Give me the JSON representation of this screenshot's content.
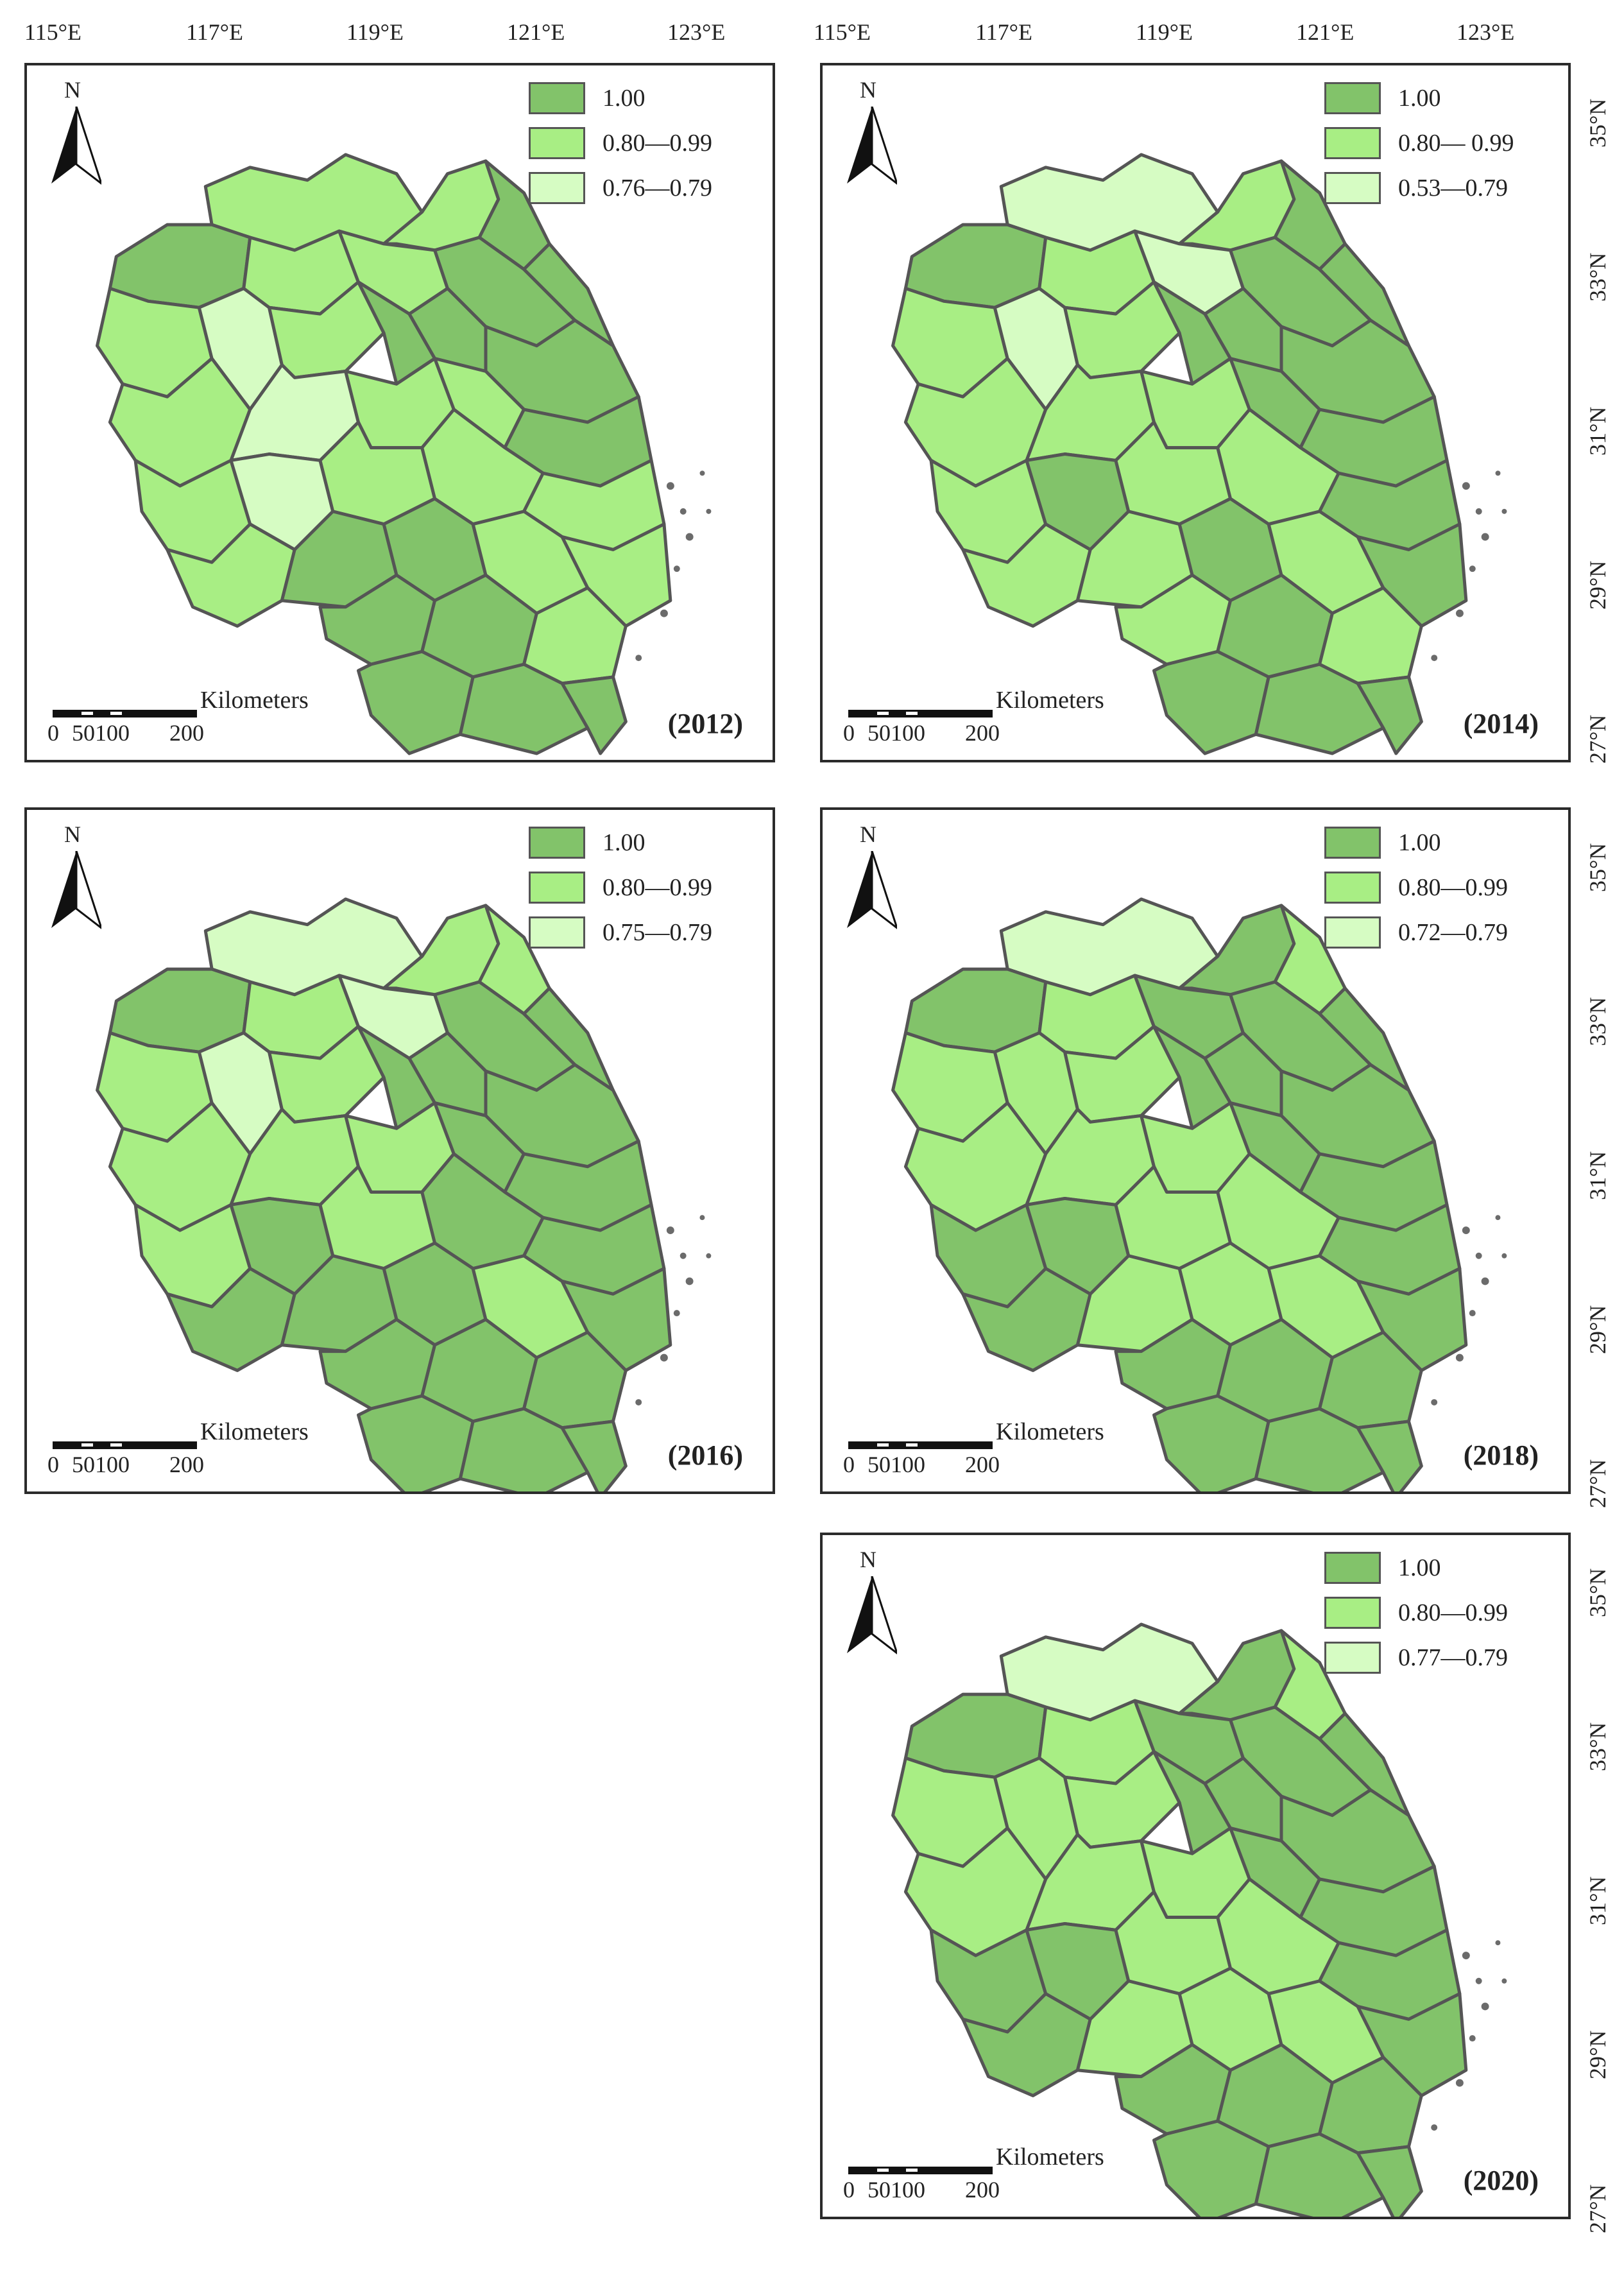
{
  "longitude_labels": [
    "115°E",
    "117°E",
    "119°E",
    "121°E",
    "123°E"
  ],
  "latitude_labels": [
    "35°N",
    "33°N",
    "31°N",
    "29°N",
    "27°N"
  ],
  "north_label": "N",
  "scale": {
    "unit": "Kilometers",
    "labels": [
      "0",
      "50100",
      "200"
    ]
  },
  "colors": {
    "level_1": "#82c36a",
    "level_2": "#a8ee84",
    "level_3": "#d6fcc3",
    "boundary": "#555555"
  },
  "panels": [
    {
      "year": "(2012)",
      "legend": [
        {
          "label": "1.00",
          "level": "level_1"
        },
        {
          "label": "0.80—0.99",
          "level": "level_2"
        },
        {
          "label": "0.76—0.79",
          "level": "level_3"
        }
      ]
    },
    {
      "year": "(2014)",
      "legend": [
        {
          "label": "1.00",
          "level": "level_1"
        },
        {
          "label": "0.80— 0.99",
          "level": "level_2"
        },
        {
          "label": "0.53—0.79",
          "level": "level_3"
        }
      ]
    },
    {
      "year": "(2016)",
      "legend": [
        {
          "label": "1.00",
          "level": "level_1"
        },
        {
          "label": "0.80—0.99",
          "level": "level_2"
        },
        {
          "label": "0.75—0.79",
          "level": "level_3"
        }
      ]
    },
    {
      "year": "(2018)",
      "legend": [
        {
          "label": "1.00",
          "level": "level_1"
        },
        {
          "label": "0.80—0.99",
          "level": "level_2"
        },
        {
          "label": "0.72—0.79",
          "level": "level_3"
        }
      ]
    },
    {
      "year": "(2020)",
      "legend": [
        {
          "label": "1.00",
          "level": "level_1"
        },
        {
          "label": "0.80—0.99",
          "level": "level_2"
        },
        {
          "label": "0.77—0.79",
          "level": "level_3"
        }
      ]
    }
  ]
}
